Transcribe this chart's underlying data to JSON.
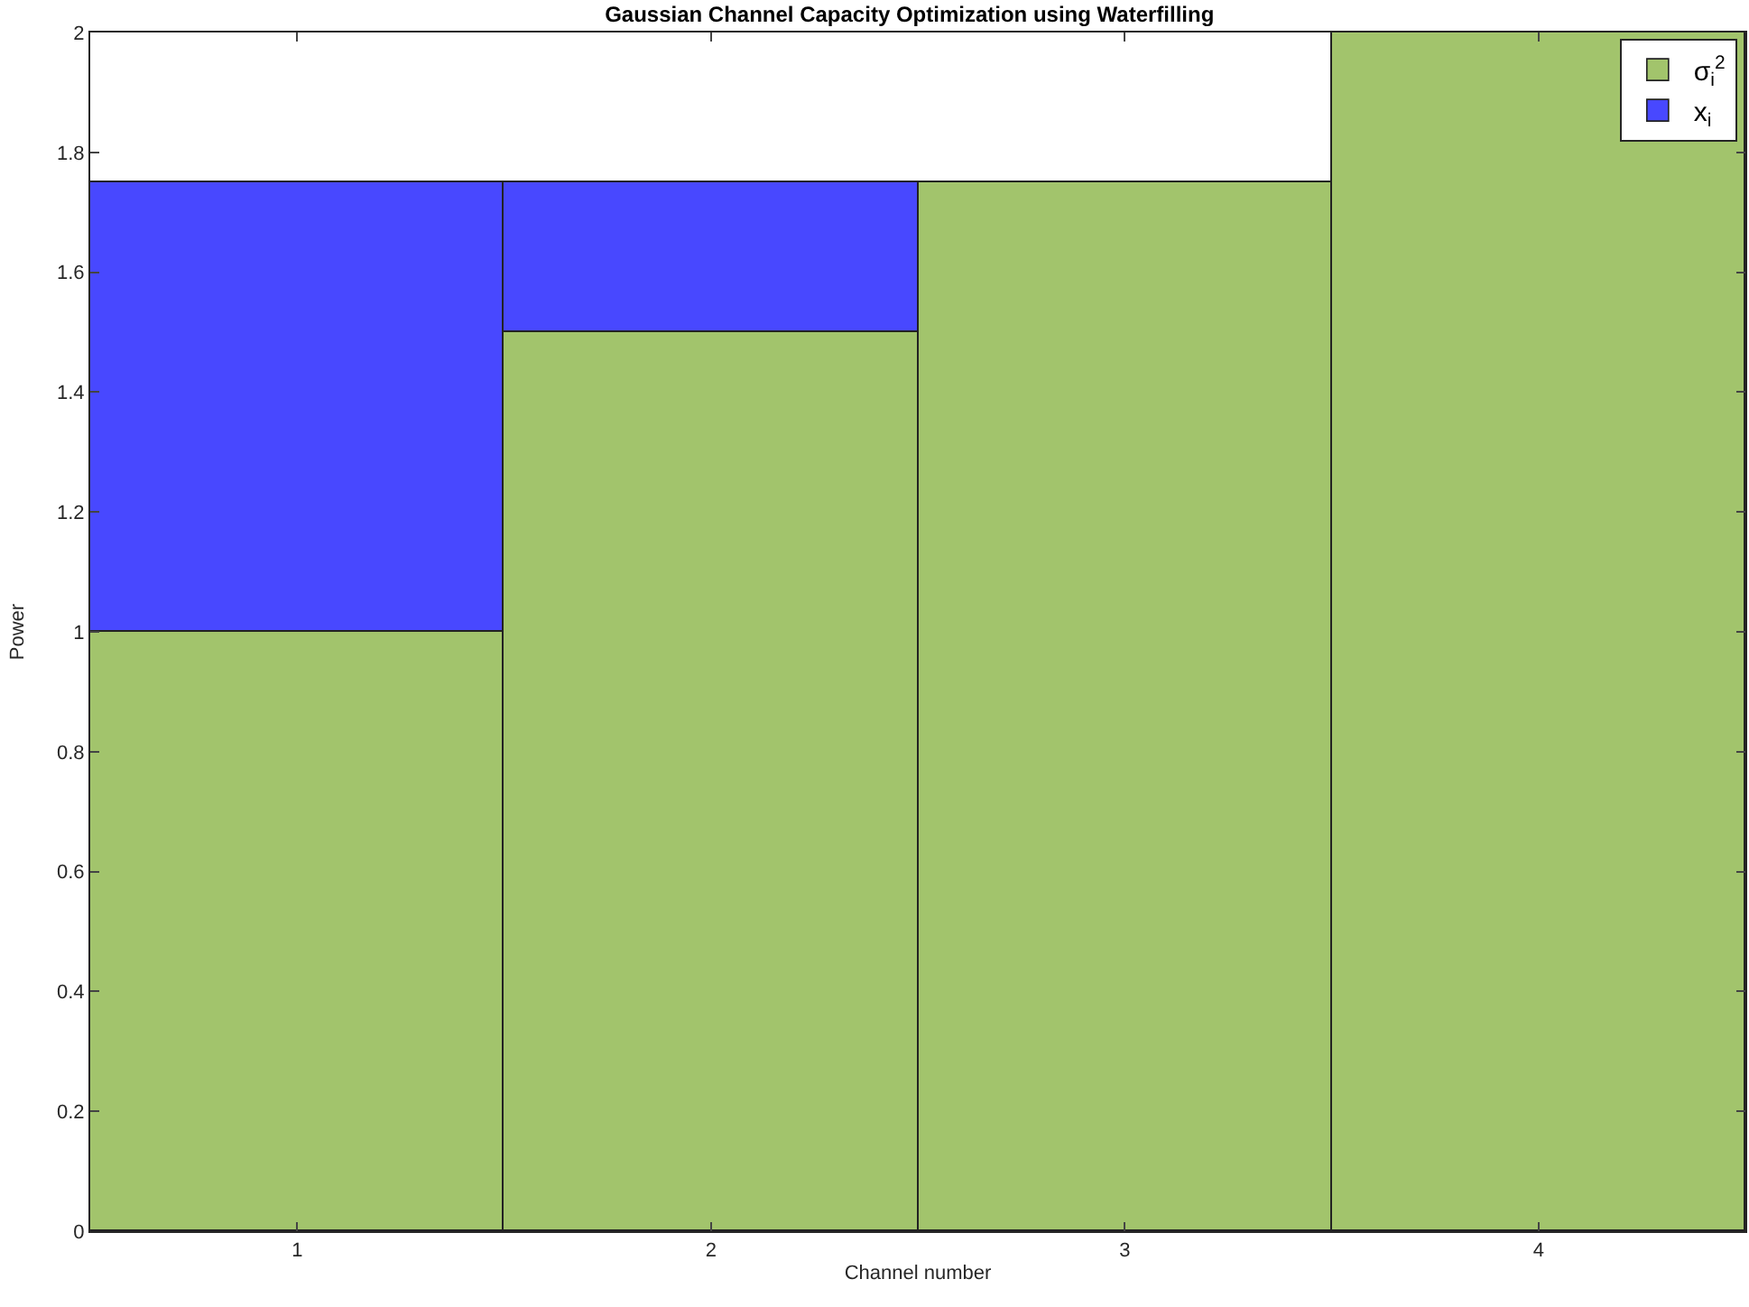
{
  "chart_data": {
    "type": "bar",
    "title": "Gaussian Channel Capacity Optimization using Waterfilling",
    "xlabel": "Channel number",
    "ylabel": "Power",
    "categories": [
      "1",
      "2",
      "3",
      "4"
    ],
    "series": [
      {
        "name": "σ$_{i}$$^{2}$",
        "color": "#a2c46c",
        "values": [
          1,
          1.5,
          1.75,
          2
        ]
      },
      {
        "name": "x$_{i}$",
        "color": "#4848ff",
        "values": [
          0.75,
          0.25,
          null,
          null
        ]
      }
    ],
    "stacked": true,
    "ylim": [
      0,
      2
    ],
    "yticks": [
      0,
      0.2,
      0.4,
      0.6,
      0.8,
      1,
      1.2,
      1.4,
      1.6,
      1.8,
      2
    ],
    "legend": "top right"
  }
}
